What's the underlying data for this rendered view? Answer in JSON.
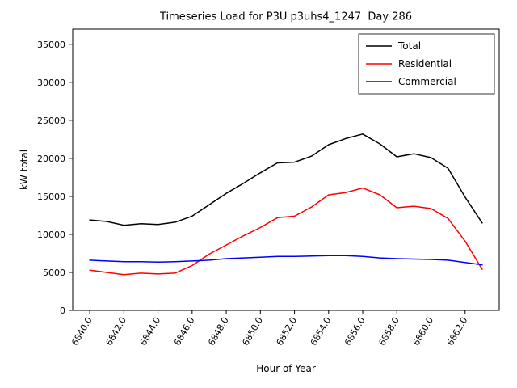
{
  "chart_data": {
    "type": "line",
    "title": "Timeseries Load for P3U p3uhs4_1247  Day 286",
    "xlabel": "Hour of Year",
    "ylabel": "kW total",
    "xlim": [
      6839,
      6864
    ],
    "ylim": [
      0,
      37000
    ],
    "grid": false,
    "legend_position": "upper right",
    "xticks": [
      6840,
      6842,
      6844,
      6846,
      6848,
      6850,
      6852,
      6854,
      6856,
      6858,
      6860,
      6862
    ],
    "xtick_labels": [
      "6840.0",
      "6842.0",
      "6844.0",
      "6846.0",
      "6848.0",
      "6850.0",
      "6852.0",
      "6854.0",
      "6856.0",
      "6858.0",
      "6860.0",
      "6862.0"
    ],
    "yticks": [
      0,
      5000,
      10000,
      15000,
      20000,
      25000,
      30000,
      35000
    ],
    "x": [
      6840,
      6841,
      6842,
      6843,
      6844,
      6845,
      6846,
      6847,
      6848,
      6849,
      6850,
      6851,
      6852,
      6853,
      6854,
      6855,
      6856,
      6857,
      6858,
      6859,
      6860,
      6861,
      6862,
      6863
    ],
    "series": [
      {
        "name": "Total",
        "color": "#000000",
        "values": [
          11900,
          11700,
          11200,
          11400,
          11300,
          11600,
          12400,
          13900,
          15400,
          16700,
          18100,
          19400,
          19500,
          20300,
          21800,
          22600,
          23200,
          21900,
          20200,
          20600,
          20100,
          18700,
          14900,
          11500
        ]
      },
      {
        "name": "Residential",
        "color": "#ff0000",
        "values": [
          5300,
          5000,
          4700,
          4900,
          4800,
          4900,
          5900,
          7400,
          8600,
          9800,
          10900,
          12200,
          12400,
          13600,
          15200,
          15500,
          16100,
          15200,
          13500,
          13700,
          13400,
          12100,
          9100,
          5400
        ]
      },
      {
        "name": "Commercial",
        "color": "#0000ff",
        "values": [
          6600,
          6500,
          6400,
          6400,
          6350,
          6400,
          6500,
          6600,
          6800,
          6900,
          7000,
          7100,
          7100,
          7150,
          7200,
          7200,
          7100,
          6900,
          6800,
          6750,
          6700,
          6600,
          6300,
          6000
        ]
      }
    ]
  }
}
